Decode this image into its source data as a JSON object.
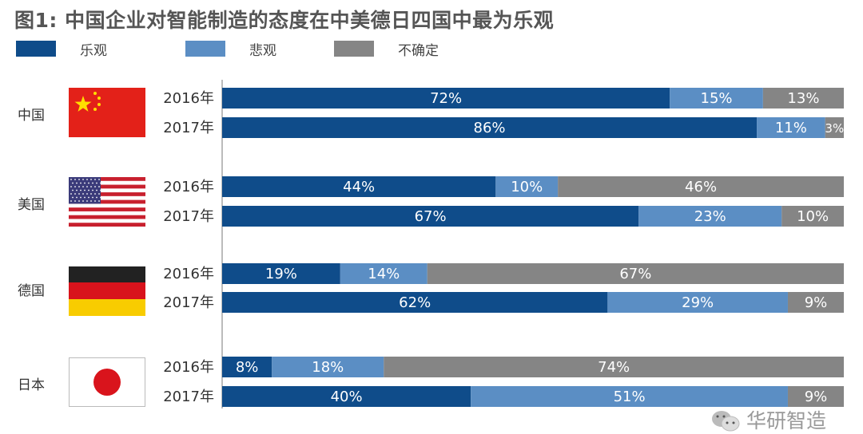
{
  "chart_data": {
    "type": "bar",
    "orientation": "horizontal-stacked-100",
    "title": "图1: 中国企业对智能制造的态度在中美德日四国中最为乐观",
    "legend": [
      {
        "name": "乐观",
        "color": "#0f4c8a"
      },
      {
        "name": "悲观",
        "color": "#5b8ec4"
      },
      {
        "name": "不确定",
        "color": "#858585"
      }
    ],
    "legend_position": "top-left",
    "xlim": [
      0,
      100
    ],
    "groups": [
      {
        "country": "中国",
        "flag": "china-flag",
        "rows": [
          {
            "year": "2016年",
            "values": [
              72,
              15,
              13
            ]
          },
          {
            "year": "2017年",
            "values": [
              86,
              11,
              3
            ]
          }
        ]
      },
      {
        "country": "美国",
        "flag": "usa-flag",
        "rows": [
          {
            "year": "2016年",
            "values": [
              44,
              10,
              46
            ]
          },
          {
            "year": "2017年",
            "values": [
              67,
              23,
              10
            ]
          }
        ]
      },
      {
        "country": "德国",
        "flag": "germany-flag",
        "rows": [
          {
            "year": "2016年",
            "values": [
              19,
              14,
              67
            ]
          },
          {
            "year": "2017年",
            "values": [
              62,
              29,
              9
            ]
          }
        ]
      },
      {
        "country": "日本",
        "flag": "japan-flag",
        "rows": [
          {
            "year": "2016年",
            "values": [
              8,
              18,
              74
            ]
          },
          {
            "year": "2017年",
            "values": [
              40,
              51,
              9
            ]
          }
        ]
      }
    ]
  },
  "watermark": "华研智造"
}
